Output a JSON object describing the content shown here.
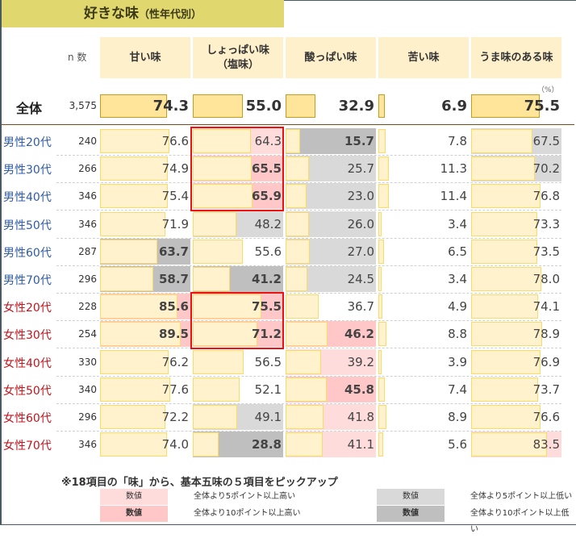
{
  "title": {
    "main": "好きな味",
    "sub": "（性年代別）"
  },
  "header": {
    "n_label": "n 数",
    "columns": [
      "甘い味",
      "しょっぱい味\n（塩味）",
      "酸っぱい味",
      "苦い味",
      "うま味のある味"
    ],
    "unit": "（%）"
  },
  "total": {
    "label": "全体",
    "n": "3,575",
    "values": [
      "74.3",
      "55.0",
      "32.9",
      "6.9",
      "75.5"
    ]
  },
  "rows": [
    {
      "label": "男性20代",
      "n": "240",
      "values": [
        "76.6",
        "64.3",
        "15.7",
        "7.8",
        "67.5"
      ],
      "flags": [
        "",
        "h5",
        "l10",
        "",
        "l5"
      ]
    },
    {
      "label": "男性30代",
      "n": "266",
      "values": [
        "74.9",
        "65.5",
        "25.7",
        "11.3",
        "70.2"
      ],
      "flags": [
        "",
        "h10",
        "l5",
        "",
        "l5"
      ]
    },
    {
      "label": "男性40代",
      "n": "346",
      "values": [
        "75.4",
        "65.9",
        "23.0",
        "11.4",
        "76.8"
      ],
      "flags": [
        "",
        "h10",
        "l5",
        "",
        ""
      ]
    },
    {
      "label": "男性50代",
      "n": "346",
      "values": [
        "71.9",
        "48.2",
        "26.0",
        "3.4",
        "73.3"
      ],
      "flags": [
        "",
        "l5",
        "l5",
        "",
        ""
      ]
    },
    {
      "label": "男性60代",
      "n": "287",
      "values": [
        "63.7",
        "55.6",
        "27.0",
        "6.5",
        "73.5"
      ],
      "flags": [
        "l10",
        "",
        "l5",
        "",
        ""
      ]
    },
    {
      "label": "男性70代",
      "n": "296",
      "values": [
        "58.7",
        "41.2",
        "24.5",
        "3.4",
        "78.0"
      ],
      "flags": [
        "l10",
        "l10",
        "l5",
        "",
        ""
      ]
    },
    {
      "label": "女性20代",
      "n": "228",
      "values": [
        "85.6",
        "75.5",
        "36.7",
        "4.9",
        "74.1"
      ],
      "flags": [
        "h10",
        "h10",
        "",
        "",
        ""
      ]
    },
    {
      "label": "女性30代",
      "n": "254",
      "values": [
        "89.5",
        "71.2",
        "46.2",
        "8.8",
        "78.9"
      ],
      "flags": [
        "h10",
        "h10",
        "h10",
        "",
        ""
      ]
    },
    {
      "label": "女性40代",
      "n": "330",
      "values": [
        "76.2",
        "56.5",
        "39.2",
        "3.9",
        "76.9"
      ],
      "flags": [
        "",
        "",
        "h5",
        "",
        ""
      ]
    },
    {
      "label": "女性50代",
      "n": "340",
      "values": [
        "77.6",
        "52.1",
        "45.8",
        "7.4",
        "73.7"
      ],
      "flags": [
        "",
        "",
        "h10",
        "",
        ""
      ]
    },
    {
      "label": "女性60代",
      "n": "296",
      "values": [
        "72.2",
        "49.1",
        "41.8",
        "8.9",
        "76.6"
      ],
      "flags": [
        "",
        "l5",
        "h5",
        "",
        ""
      ]
    },
    {
      "label": "女性70代",
      "n": "346",
      "values": [
        "74.0",
        "28.8",
        "41.1",
        "5.6",
        "83.5"
      ],
      "flags": [
        "",
        "l10",
        "h5",
        "",
        "h5"
      ]
    }
  ],
  "note": "※18項目の「味」から、基本五味の５項目をピックアップ",
  "legend": [
    {
      "swatch": "数値",
      "text": "全体より5ポイント以上高い",
      "color": "#ffdcdc"
    },
    {
      "swatch": "数値",
      "text": "全体より10ポイント以上高い",
      "color": "#ffc7c7"
    },
    {
      "swatch": "数値",
      "text": "全体より5ポイント以上低い",
      "color": "#d9d9d9"
    },
    {
      "swatch": "数値",
      "text": "全体より10ポイント以上低い",
      "color": "#bfbfbf"
    }
  ],
  "colors": {
    "title_bg": "#e0d86e",
    "header_bg": "#fff0cc",
    "bar_fill": "#fff2cc",
    "bar_border": "#ffd966",
    "total_bar_fill": "#ffe599",
    "high5": "#ffdcdc",
    "high10": "#ffc7c7",
    "low5": "#d9d9d9",
    "low10": "#bfbfbf",
    "male_label": "#2e5aa8",
    "female_label": "#c0141c",
    "highlight_box": "#ee1111"
  },
  "chart_data": {
    "type": "bar",
    "title": "好きな味（性年代別）",
    "unit": "%",
    "categories": [
      "甘い味",
      "しょっぱい味（塩味）",
      "酸っぱい味",
      "苦い味",
      "うま味のある味"
    ],
    "series": [
      {
        "name": "全体",
        "n": 3575,
        "values": [
          74.3,
          55.0,
          32.9,
          6.9,
          75.5
        ]
      },
      {
        "name": "男性20代",
        "n": 240,
        "values": [
          76.6,
          64.3,
          15.7,
          7.8,
          67.5
        ]
      },
      {
        "name": "男性30代",
        "n": 266,
        "values": [
          74.9,
          65.5,
          25.7,
          11.3,
          70.2
        ]
      },
      {
        "name": "男性40代",
        "n": 346,
        "values": [
          75.4,
          65.9,
          23.0,
          11.4,
          76.8
        ]
      },
      {
        "name": "男性50代",
        "n": 346,
        "values": [
          71.9,
          48.2,
          26.0,
          3.4,
          73.3
        ]
      },
      {
        "name": "男性60代",
        "n": 287,
        "values": [
          63.7,
          55.6,
          27.0,
          6.5,
          73.5
        ]
      },
      {
        "name": "男性70代",
        "n": 296,
        "values": [
          58.7,
          41.2,
          24.5,
          3.4,
          78.0
        ]
      },
      {
        "name": "女性20代",
        "n": 228,
        "values": [
          85.6,
          75.5,
          36.7,
          4.9,
          74.1
        ]
      },
      {
        "name": "女性30代",
        "n": 254,
        "values": [
          89.5,
          71.2,
          46.2,
          8.8,
          78.9
        ]
      },
      {
        "name": "女性40代",
        "n": 330,
        "values": [
          76.2,
          56.5,
          39.2,
          3.9,
          76.9
        ]
      },
      {
        "name": "女性50代",
        "n": 340,
        "values": [
          77.6,
          52.1,
          45.8,
          7.4,
          73.7
        ]
      },
      {
        "name": "女性60代",
        "n": 296,
        "values": [
          72.2,
          49.1,
          41.8,
          8.9,
          76.6
        ]
      },
      {
        "name": "女性70代",
        "n": 346,
        "values": [
          74.0,
          28.8,
          41.1,
          5.6,
          83.5
        ]
      }
    ],
    "annotations": [
      "※18項目の「味」から、基本五味の５項目をピックアップ"
    ],
    "ylim": [
      0,
      100
    ]
  }
}
